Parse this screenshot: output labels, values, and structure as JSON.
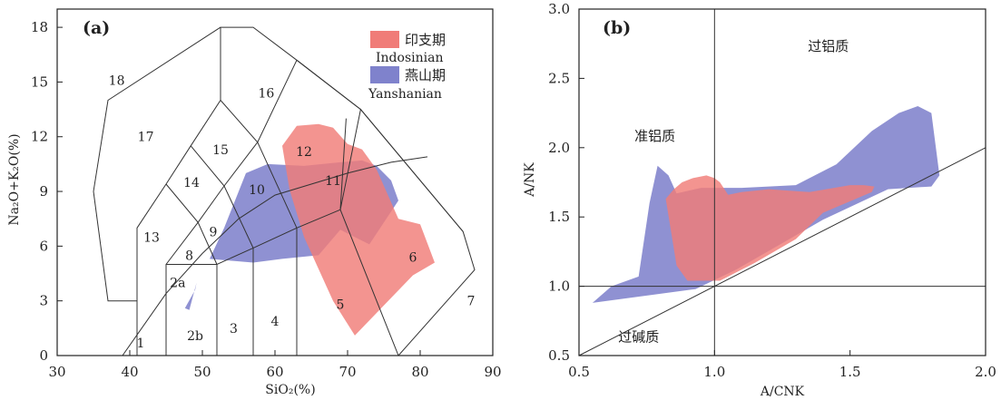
{
  "chart_data": [
    {
      "type": "scatter",
      "panel_label": "(a)",
      "xlabel": "SiO₂(%)",
      "ylabel": "Na₂O+K₂O(%)",
      "xlim": [
        30,
        90
      ],
      "ylim": [
        0,
        19
      ],
      "x_ticks": [
        "30",
        "40",
        "50",
        "60",
        "70",
        "80",
        "90"
      ],
      "y_ticks": [
        "0",
        "3",
        "6",
        "9",
        "12",
        "15",
        "18"
      ],
      "legend": [
        {
          "label_cn": "印支期",
          "label_en": "Indosinian",
          "color": "#f07c78"
        },
        {
          "label_cn": "燕山期",
          "label_en": "Yanshanian",
          "color": "#7f82cc"
        }
      ],
      "field_labels": [
        {
          "text": "1",
          "x": 41.5,
          "y": 0.7
        },
        {
          "text": "2a",
          "x": 46.6,
          "y": 4.0
        },
        {
          "text": "2b",
          "x": 49.0,
          "y": 1.1
        },
        {
          "text": "3",
          "x": 54.3,
          "y": 1.5
        },
        {
          "text": "4",
          "x": 60.0,
          "y": 1.9
        },
        {
          "text": "5",
          "x": 69.0,
          "y": 2.8
        },
        {
          "text": "6",
          "x": 79.0,
          "y": 5.4
        },
        {
          "text": "7",
          "x": 87.0,
          "y": 3.0
        },
        {
          "text": "8",
          "x": 48.2,
          "y": 5.5
        },
        {
          "text": "9",
          "x": 51.5,
          "y": 6.8
        },
        {
          "text": "10",
          "x": 57.5,
          "y": 9.1
        },
        {
          "text": "11",
          "x": 68.0,
          "y": 9.6
        },
        {
          "text": "12",
          "x": 64.0,
          "y": 11.2
        },
        {
          "text": "13",
          "x": 43.0,
          "y": 6.5
        },
        {
          "text": "14",
          "x": 48.5,
          "y": 9.5
        },
        {
          "text": "15",
          "x": 52.5,
          "y": 11.3
        },
        {
          "text": "16",
          "x": 58.8,
          "y": 14.4
        },
        {
          "text": "17",
          "x": 42.2,
          "y": 12.0
        },
        {
          "text": "18",
          "x": 38.2,
          "y": 15.1
        }
      ],
      "series": [
        {
          "name": "燕山期 Yanshanian",
          "color": "#7f82cc",
          "x": [
            51,
            53,
            56,
            59,
            64,
            69,
            72,
            74,
            76,
            77,
            73,
            69,
            66,
            61,
            57,
            51
          ],
          "y": [
            5.3,
            7.0,
            10.0,
            10.5,
            10.4,
            10.6,
            10.7,
            10.4,
            9.6,
            8.5,
            6.1,
            6.9,
            5.5,
            5.3,
            5.1,
            5.3
          ]
        },
        {
          "name": "印支期 Indosinian",
          "color": "#f07c78",
          "x": [
            61,
            63,
            66,
            68,
            70,
            72,
            74,
            77,
            80,
            82,
            79,
            71,
            68,
            64,
            62,
            61
          ],
          "y": [
            11.5,
            12.6,
            12.7,
            12.5,
            11.6,
            11.3,
            10.2,
            7.5,
            7.2,
            5.1,
            4.4,
            1.1,
            3.0,
            6.5,
            9.1,
            11.5
          ]
        }
      ],
      "extra_patches": [
        {
          "color": "#7f82cc",
          "x": [
            47.6,
            49.0,
            49.2,
            48.2,
            47.6
          ],
          "y": [
            2.6,
            3.6,
            4.0,
            2.5,
            2.6
          ]
        }
      ]
    },
    {
      "type": "scatter",
      "panel_label": "(b)",
      "xlabel": "A/CNK",
      "ylabel": "A/NK",
      "xlim": [
        0.5,
        2.0
      ],
      "ylim": [
        0.5,
        3.0
      ],
      "x_ticks": [
        "0.5",
        "1.0",
        "1.5",
        "2.0"
      ],
      "y_ticks": [
        "0.5",
        "1.0",
        "1.5",
        "2.0",
        "2.5",
        "3.0"
      ],
      "annotations": [
        {
          "text": "过铝质",
          "x": 1.42,
          "y": 2.7
        },
        {
          "text": "准铝质",
          "x": 0.78,
          "y": 2.05
        },
        {
          "text": "过碱质",
          "x": 0.72,
          "y": 0.6
        }
      ],
      "series": [
        {
          "name": "燕山期 Yanshanian",
          "color": "#7f82cc",
          "x": [
            0.55,
            0.62,
            0.72,
            0.76,
            0.79,
            0.83,
            0.86,
            0.95,
            1.1,
            1.3,
            1.45,
            1.58,
            1.68,
            1.75,
            1.8,
            1.83,
            1.8,
            1.64,
            1.4,
            1.08,
            0.93,
            0.55
          ],
          "y": [
            0.88,
            1.0,
            1.07,
            1.6,
            1.87,
            1.8,
            1.67,
            1.71,
            1.71,
            1.73,
            1.88,
            2.12,
            2.25,
            2.3,
            2.25,
            1.8,
            1.72,
            1.7,
            1.48,
            1.12,
            0.98,
            0.88
          ]
        },
        {
          "name": "印支期 Indosinian",
          "color": "#f07c78",
          "x": [
            0.82,
            0.85,
            0.88,
            0.92,
            0.97,
            1.0,
            1.02,
            1.05,
            1.1,
            1.2,
            1.35,
            1.5,
            1.55,
            1.59,
            1.58,
            1.4,
            1.3,
            1.15,
            1.02,
            0.9,
            0.86,
            0.82
          ],
          "y": [
            1.63,
            1.7,
            1.75,
            1.78,
            1.8,
            1.78,
            1.75,
            1.66,
            1.68,
            1.7,
            1.68,
            1.73,
            1.73,
            1.72,
            1.68,
            1.53,
            1.34,
            1.17,
            1.04,
            1.04,
            1.15,
            1.63
          ]
        }
      ]
    }
  ]
}
